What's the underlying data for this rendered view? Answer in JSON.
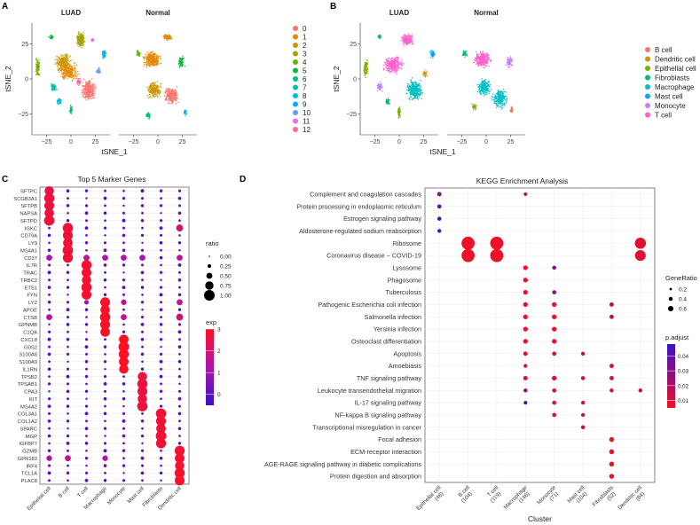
{
  "panels": {
    "A": "A",
    "B": "B",
    "C": "C",
    "D": "D"
  },
  "chart_data": [
    {
      "type": "scatter",
      "id": "A",
      "panel_label": "A",
      "facets": [
        "LUAD",
        "Normal"
      ],
      "xlabel": "tSNE_1",
      "ylabel": "tSNE_2",
      "x_ticks": [
        -25,
        0,
        25
      ],
      "y_ticks": [
        25,
        0,
        -25
      ],
      "legend_title": "",
      "legend": [
        {
          "label": "0",
          "color": "#F8766D"
        },
        {
          "label": "1",
          "color": "#E58700"
        },
        {
          "label": "2",
          "color": "#C99800"
        },
        {
          "label": "3",
          "color": "#A3A500"
        },
        {
          "label": "4",
          "color": "#6BB100"
        },
        {
          "label": "5",
          "color": "#00BA38"
        },
        {
          "label": "6",
          "color": "#00BF7D"
        },
        {
          "label": "7",
          "color": "#00C0AF"
        },
        {
          "label": "8",
          "color": "#00BCD8"
        },
        {
          "label": "9",
          "color": "#00B0F6"
        },
        {
          "label": "10",
          "color": "#619CFF"
        },
        {
          "label": "11",
          "color": "#E76BF3"
        },
        {
          "label": "12",
          "color": "#FF67A4"
        }
      ]
    },
    {
      "type": "scatter",
      "id": "B",
      "panel_label": "B",
      "facets": [
        "LUAD",
        "Normal"
      ],
      "xlabel": "tSNE_1",
      "ylabel": "tSNE_2",
      "x_ticks": [
        -25,
        0,
        25
      ],
      "y_ticks": [
        25,
        0,
        -25
      ],
      "legend": [
        {
          "label": "B cell",
          "color": "#F8766D"
        },
        {
          "label": "Dendritic cell",
          "color": "#CD9600"
        },
        {
          "label": "Epithelial cell",
          "color": "#7CAE00"
        },
        {
          "label": "Fibroblasts",
          "color": "#00BE67"
        },
        {
          "label": "Macrophage",
          "color": "#00BFC4"
        },
        {
          "label": "Mast cell",
          "color": "#00A9FF"
        },
        {
          "label": "Monocyte",
          "color": "#C77CFF"
        },
        {
          "label": "T cell",
          "color": "#FF61CC"
        }
      ]
    },
    {
      "type": "scatter",
      "id": "C",
      "panel_label": "C",
      "title": "Top 5 Marker Genes",
      "genes": [
        "SFTPC",
        "SCGB3A1",
        "SFTPB",
        "NAPSA",
        "SFTPD",
        "IGKC",
        "CD79A",
        "LY9",
        "MS4A1",
        "CD37",
        "IL7R",
        "TRAC",
        "TRBC2",
        "ETS1",
        "FYN",
        "LYZ",
        "APOE",
        "CTSB",
        "GPNMB",
        "C1QA",
        "CXCL8",
        "G0S2",
        "S100A8",
        "S100A9",
        "IL1RN",
        "TPSB2",
        "TPSAB1",
        "CPA3",
        "KIT",
        "MS4A2",
        "COL3A1",
        "COL1A2",
        "SPARC",
        "MGP",
        "IGFBP7",
        "GZMB",
        "GPR183",
        "IRF4",
        "TCL1A",
        "PLAC8"
      ],
      "clusters": [
        "Epithelial cell",
        "B cell",
        "T cell",
        "Macrophage",
        "Monocyte",
        "Mast cell",
        "Fibroblasts",
        "Dendritic cell"
      ],
      "highlight_rows": [
        [
          0,
          4
        ],
        [
          5,
          9
        ],
        [
          10,
          14
        ],
        [
          15,
          19
        ],
        [
          20,
          24
        ],
        [
          25,
          29
        ],
        [
          30,
          34
        ],
        [
          35,
          39
        ]
      ],
      "extra_points": [
        [
          5,
          7,
          0.6,
          2.1
        ],
        [
          9,
          0,
          0.5,
          1.2
        ],
        [
          9,
          1,
          0.5,
          1.6
        ],
        [
          9,
          2,
          0.5,
          1.4
        ],
        [
          9,
          3,
          0.5,
          1.2
        ],
        [
          9,
          4,
          0.5,
          1.2
        ],
        [
          9,
          5,
          0.5,
          1.2
        ],
        [
          9,
          7,
          0.5,
          1.5
        ],
        [
          15,
          2,
          0.35,
          1.0
        ],
        [
          15,
          4,
          0.45,
          1.5
        ],
        [
          15,
          7,
          0.5,
          1.6
        ],
        [
          17,
          0,
          0.5,
          1.2
        ],
        [
          17,
          4,
          0.5,
          1.6
        ],
        [
          17,
          7,
          0.6,
          2.0
        ],
        [
          36,
          0,
          0.45,
          1.2
        ],
        [
          36,
          1,
          0.5,
          1.5
        ],
        [
          36,
          3,
          0.45,
          1.3
        ],
        [
          36,
          7,
          0.5,
          1.6
        ]
      ],
      "size_legend_title": "ratio",
      "size_legend": [
        0.0,
        0.25,
        0.5,
        0.75,
        1.0
      ],
      "size_legend_labels": [
        "0.00",
        "0.25",
        "0.50",
        "0.75",
        "1.00"
      ],
      "color_legend_title": "exp",
      "color_legend_ticks": [
        "3",
        "2",
        "1",
        "0"
      ],
      "color_range": [
        -0.5,
        3.0
      ],
      "color_low": "#3A10C8",
      "color_high": "#FF1020"
    },
    {
      "type": "scatter",
      "id": "D",
      "panel_label": "D",
      "title": "KEGG Enrichment Analysis",
      "xlabel": "Cluster",
      "clusters": [
        "Epithelial cell\n(48)",
        "B cell\n(104)",
        "T cell\n(119)",
        "Macrophage\n(146)",
        "Monocyte\n(71)",
        "Mast cell\n(104)",
        "Fibroblasts\n(52)",
        "Dendritic cell\n(84)"
      ],
      "pathways": [
        "Complement and coagulation cascades",
        "Protein processing in endoplasmic reticulum",
        "Estrogen signaling pathway",
        "Aldosterone-regulated sodium reabsorption",
        "Ribosome",
        "Coronavirus disease - COVID-19",
        "Lysosome",
        "Phagosome",
        "Tuberculosis",
        "Pathogenic Escherichia coli infection",
        "Salmonella infection",
        "Yersinia infection",
        "Osteoclast differentiation",
        "Apoptosis",
        "Amoebiasis",
        "TNF signaling pathway",
        "Leukocyte transendothelial migration",
        "IL-17 signaling pathway",
        "NF-kappa B signaling pathway",
        "Transcriptional misregulation in cancer",
        "Focal adhesion",
        "ECM-receptor interaction",
        "AGE-RAGE signaling pathway in diabetic complications",
        "Protein digestion and absorption"
      ],
      "points": [
        [
          0,
          0,
          0.1,
          0.03
        ],
        [
          0,
          3,
          0.06,
          0.012
        ],
        [
          1,
          0,
          0.09,
          0.038
        ],
        [
          2,
          0,
          0.08,
          0.048
        ],
        [
          3,
          0,
          0.07,
          0.048
        ],
        [
          4,
          1,
          0.62,
          0.005
        ],
        [
          4,
          2,
          0.62,
          0.005
        ],
        [
          4,
          7,
          0.5,
          0.008
        ],
        [
          5,
          1,
          0.62,
          0.005
        ],
        [
          5,
          2,
          0.62,
          0.005
        ],
        [
          5,
          7,
          0.48,
          0.008
        ],
        [
          6,
          3,
          0.12,
          0.005
        ],
        [
          6,
          4,
          0.08,
          0.03
        ],
        [
          7,
          3,
          0.12,
          0.005
        ],
        [
          8,
          3,
          0.12,
          0.005
        ],
        [
          8,
          4,
          0.09,
          0.028
        ],
        [
          9,
          3,
          0.12,
          0.008
        ],
        [
          9,
          4,
          0.12,
          0.008
        ],
        [
          9,
          6,
          0.1,
          0.018
        ],
        [
          10,
          3,
          0.12,
          0.005
        ],
        [
          10,
          4,
          0.12,
          0.005
        ],
        [
          10,
          6,
          0.1,
          0.018
        ],
        [
          11,
          3,
          0.12,
          0.005
        ],
        [
          11,
          4,
          0.12,
          0.005
        ],
        [
          12,
          3,
          0.12,
          0.005
        ],
        [
          12,
          4,
          0.12,
          0.005
        ],
        [
          13,
          3,
          0.1,
          0.01
        ],
        [
          13,
          4,
          0.09,
          0.012
        ],
        [
          13,
          5,
          0.07,
          0.02
        ],
        [
          14,
          3,
          0.07,
          0.01
        ],
        [
          14,
          6,
          0.1,
          0.01
        ],
        [
          15,
          3,
          0.1,
          0.012
        ],
        [
          15,
          4,
          0.12,
          0.008
        ],
        [
          15,
          5,
          0.08,
          0.015
        ],
        [
          15,
          6,
          0.1,
          0.01
        ],
        [
          16,
          3,
          0.08,
          0.025
        ],
        [
          16,
          4,
          0.09,
          0.012
        ],
        [
          16,
          6,
          0.08,
          0.012
        ],
        [
          16,
          7,
          0.08,
          0.012
        ],
        [
          17,
          3,
          0.06,
          0.042
        ],
        [
          17,
          4,
          0.09,
          0.01
        ],
        [
          17,
          5,
          0.07,
          0.012
        ],
        [
          18,
          4,
          0.09,
          0.01
        ],
        [
          18,
          5,
          0.07,
          0.015
        ],
        [
          19,
          5,
          0.08,
          0.012
        ],
        [
          20,
          6,
          0.13,
          0.005
        ],
        [
          21,
          6,
          0.13,
          0.005
        ],
        [
          22,
          6,
          0.13,
          0.005
        ],
        [
          23,
          6,
          0.13,
          0.005
        ]
      ],
      "size_legend_title": "GeneRatio",
      "size_legend": [
        0.2,
        0.4,
        0.6
      ],
      "size_legend_labels": [
        "0.2",
        "0.4",
        "0.6"
      ],
      "color_legend_title": "p.adjust",
      "color_legend_ticks": [
        "0.04",
        "0.03",
        "0.02",
        "0.01"
      ],
      "color_range": [
        0.005,
        0.048
      ],
      "color_low_p": "#EE1028",
      "color_high_p": "#3A10C8"
    }
  ]
}
